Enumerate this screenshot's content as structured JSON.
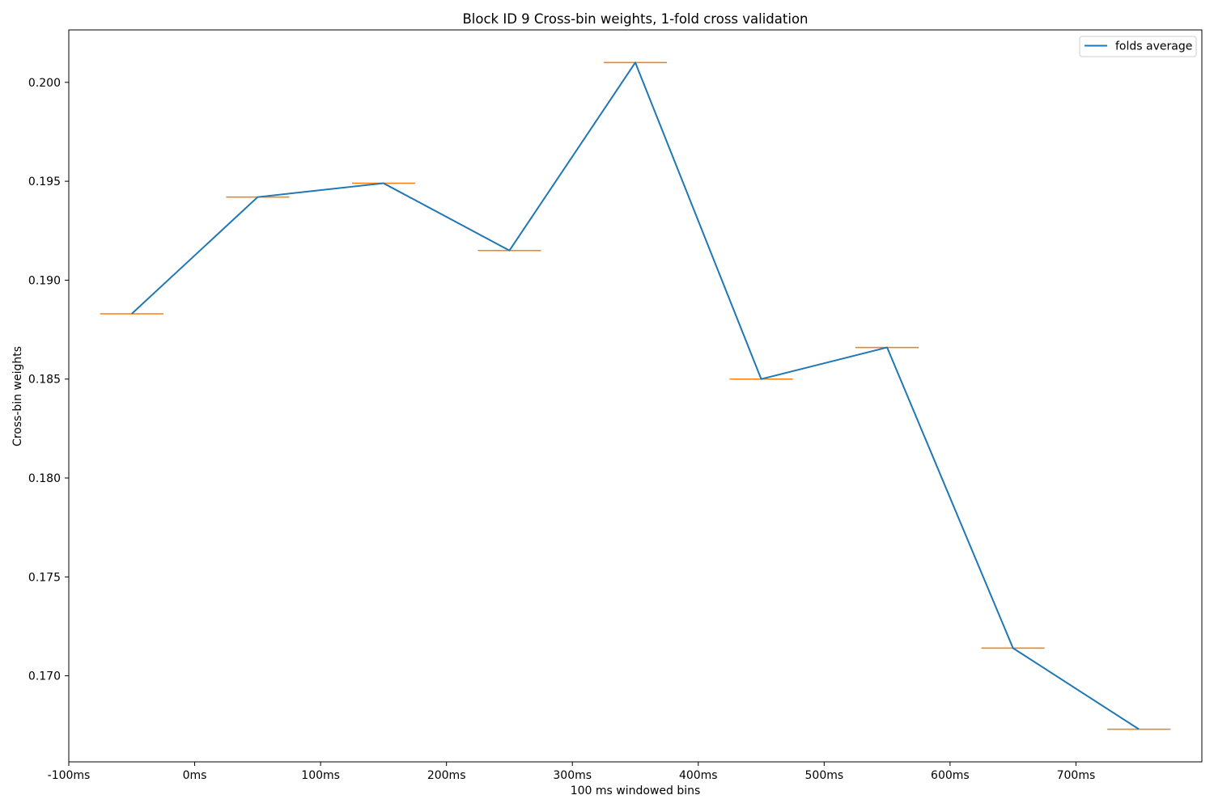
{
  "chart_data": {
    "type": "line",
    "title": "Block ID 9 Cross-bin weights, 1-fold cross validation",
    "xlabel": "100 ms windowed bins",
    "ylabel": "Cross-bin weights",
    "x_tick_labels": [
      "-100ms",
      "0ms",
      "100ms",
      "200ms",
      "300ms",
      "400ms",
      "500ms",
      "600ms",
      "700ms"
    ],
    "x_tick_values": [
      -100,
      0,
      100,
      200,
      300,
      400,
      500,
      600,
      700
    ],
    "y_tick_labels": [
      "0.170",
      "0.175",
      "0.180",
      "0.185",
      "0.190",
      "0.195",
      "0.200"
    ],
    "y_tick_values": [
      0.17,
      0.175,
      0.18,
      0.185,
      0.19,
      0.195,
      0.2
    ],
    "xlim": [
      -100,
      800
    ],
    "ylim": [
      0.16565,
      0.20265
    ],
    "x": [
      -50,
      50,
      150,
      250,
      350,
      450,
      550,
      650,
      750
    ],
    "series": [
      {
        "name": "folds average",
        "color": "#1f77b4",
        "values": [
          0.1883,
          0.1942,
          0.1949,
          0.1915,
          0.201,
          0.185,
          0.1866,
          0.1714,
          0.1673
        ]
      }
    ],
    "boxplot_medians": {
      "color": "#ff7f0e",
      "values": [
        0.1883,
        0.1942,
        0.1949,
        0.1915,
        0.201,
        0.185,
        0.1866,
        0.1714,
        0.1673
      ]
    },
    "grid": false,
    "legend_position": "top-right"
  }
}
